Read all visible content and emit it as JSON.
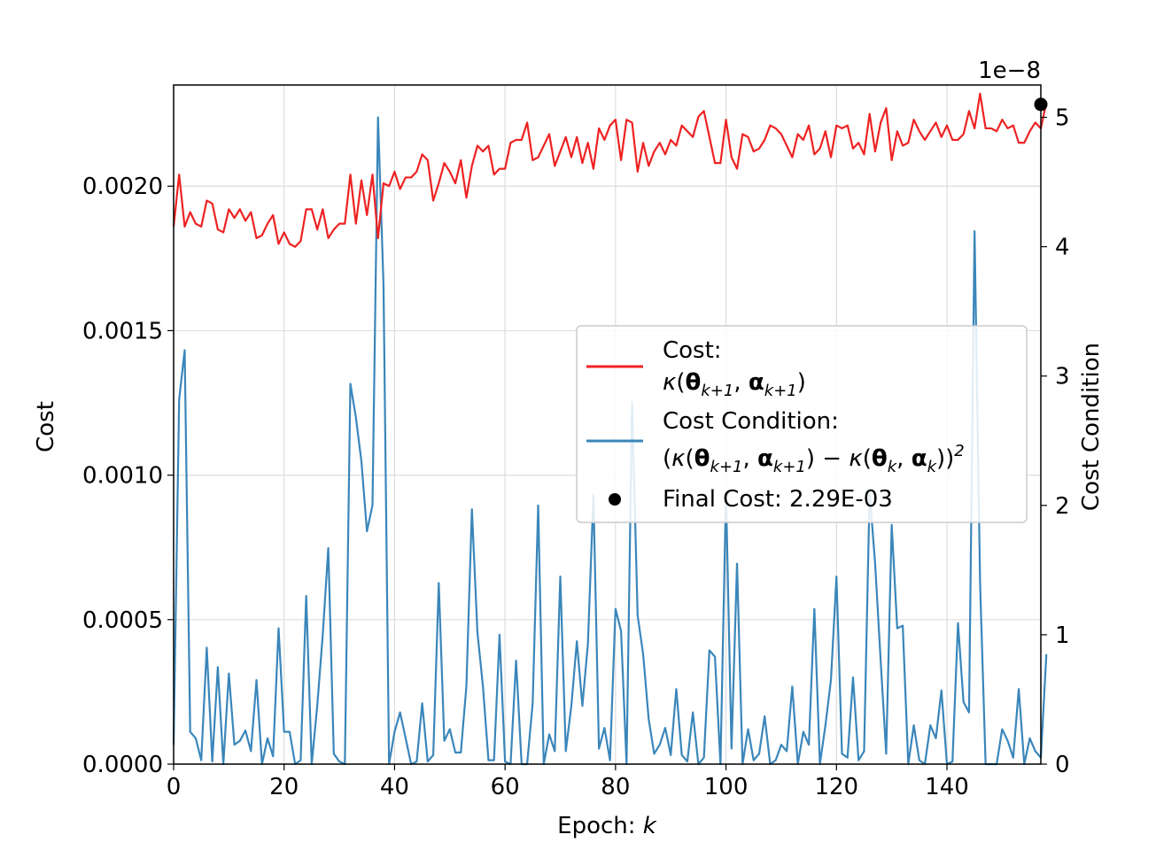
{
  "chart_data": {
    "type": "line",
    "xlabel": "Epoch: k",
    "ylabel_left": "Cost",
    "ylabel_right": "Cost Condition",
    "right_axis_offset_text": "1e−8",
    "x_ticks": [
      "0",
      "20",
      "40",
      "60",
      "80",
      "100",
      "120",
      "140"
    ],
    "y_left_ticks": [
      "0.0000",
      "0.0005",
      "0.0010",
      "0.0015",
      "0.0020"
    ],
    "y_right_ticks": [
      "0",
      "1",
      "2",
      "3",
      "4",
      "5"
    ],
    "xlim": [
      0,
      157
    ],
    "ylim_left": [
      0,
      0.00235
    ],
    "ylim_right": [
      0,
      5.25
    ],
    "grid": true,
    "legend_position": "center-right",
    "colors": {
      "cost": "#ee2222",
      "condition": "#3a86ba",
      "final": "#000000"
    },
    "legend": {
      "cost_title": "Cost:",
      "cost_formula": "κ(θk+1, αk+1)",
      "condition_title": "Cost Condition:",
      "condition_formula": "(κ(θk+1, αk+1) − κ(θk, αk))²",
      "final_label": "Final Cost: 2.29E-03"
    },
    "series": [
      {
        "name": "Cost",
        "axis": "left",
        "x_start": 0,
        "values": [
          0.00186,
          0.00204,
          0.00186,
          0.00191,
          0.00187,
          0.00186,
          0.00195,
          0.00194,
          0.00185,
          0.00184,
          0.00192,
          0.00189,
          0.00192,
          0.00188,
          0.00191,
          0.00182,
          0.00183,
          0.00187,
          0.0019,
          0.0018,
          0.00184,
          0.0018,
          0.00179,
          0.00181,
          0.00192,
          0.00192,
          0.00185,
          0.00192,
          0.00182,
          0.00185,
          0.00187,
          0.00187,
          0.00204,
          0.00187,
          0.00202,
          0.0019,
          0.00204,
          0.00182,
          0.00201,
          0.002,
          0.00205,
          0.00199,
          0.00203,
          0.00203,
          0.00205,
          0.00211,
          0.00209,
          0.00195,
          0.00201,
          0.00208,
          0.00205,
          0.00201,
          0.00209,
          0.00196,
          0.00207,
          0.00214,
          0.00212,
          0.00214,
          0.00204,
          0.00206,
          0.00206,
          0.00215,
          0.00216,
          0.00216,
          0.00222,
          0.00209,
          0.0021,
          0.00214,
          0.00218,
          0.00207,
          0.00212,
          0.00217,
          0.0021,
          0.00217,
          0.00208,
          0.00215,
          0.00206,
          0.0022,
          0.00216,
          0.00221,
          0.00223,
          0.00209,
          0.00223,
          0.00222,
          0.00205,
          0.00215,
          0.00207,
          0.00212,
          0.00215,
          0.00211,
          0.00216,
          0.00214,
          0.00221,
          0.00219,
          0.00217,
          0.00224,
          0.00226,
          0.00217,
          0.00208,
          0.00208,
          0.00223,
          0.0021,
          0.00206,
          0.00218,
          0.00217,
          0.00212,
          0.00213,
          0.00216,
          0.00221,
          0.0022,
          0.00218,
          0.00214,
          0.0021,
          0.00218,
          0.00216,
          0.00221,
          0.00211,
          0.00213,
          0.00219,
          0.0021,
          0.00221,
          0.0022,
          0.00221,
          0.00213,
          0.00215,
          0.00211,
          0.00225,
          0.00212,
          0.00222,
          0.00227,
          0.00209,
          0.00219,
          0.00214,
          0.00215,
          0.00223,
          0.00219,
          0.00216,
          0.00219,
          0.00222,
          0.00217,
          0.00221,
          0.00216,
          0.00216,
          0.00218,
          0.00226,
          0.0022,
          0.00232,
          0.0022,
          0.0022,
          0.00219,
          0.00223,
          0.0022,
          0.00221,
          0.00215,
          0.00215,
          0.00219,
          0.00222,
          0.0022,
          0.00229
        ]
      },
      {
        "name": "Cost Condition",
        "axis": "right",
        "x_start": 0,
        "values": [
          0.15,
          2.82,
          3.2,
          0.25,
          0.2,
          0.03,
          0.9,
          0.02,
          0.75,
          0.0,
          0.7,
          0.15,
          0.18,
          0.26,
          0.1,
          0.65,
          0.0,
          0.2,
          0.06,
          1.05,
          0.25,
          0.25,
          0.0,
          0.03,
          1.3,
          0.0,
          0.45,
          1.0,
          1.67,
          0.08,
          0.02,
          0.0,
          2.94,
          2.68,
          2.34,
          1.8,
          2.0,
          5.0,
          3.7,
          0.0,
          0.25,
          0.4,
          0.2,
          0.0,
          0.02,
          0.47,
          0.02,
          0.07,
          1.4,
          0.18,
          0.27,
          0.09,
          0.09,
          0.6,
          1.97,
          1.02,
          0.6,
          0.03,
          0.03,
          1.0,
          0.02,
          0.0,
          0.8,
          0.0,
          0.0,
          0.47,
          2.0,
          0.0,
          0.23,
          0.1,
          1.45,
          0.1,
          0.45,
          0.95,
          0.45,
          0.93,
          2.08,
          0.12,
          0.28,
          0.03,
          1.2,
          1.03,
          0.0,
          2.8,
          1.15,
          0.85,
          0.35,
          0.08,
          0.15,
          0.28,
          0.07,
          0.58,
          0.07,
          0.02,
          0.4,
          0.0,
          0.05,
          0.88,
          0.83,
          0.0,
          2.1,
          0.12,
          1.55,
          0.0,
          0.27,
          0.03,
          0.08,
          0.37,
          0.0,
          0.03,
          0.15,
          0.1,
          0.6,
          0.0,
          0.25,
          0.15,
          1.2,
          0.0,
          0.3,
          0.65,
          1.45,
          0.08,
          0.05,
          0.67,
          0.03,
          0.1,
          2.1,
          1.55,
          0.8,
          0.08,
          1.85,
          1.05,
          1.07,
          0.0,
          0.3,
          0.03,
          0.0,
          0.3,
          0.2,
          0.57,
          0.0,
          0.02,
          1.09,
          0.48,
          0.4,
          4.12,
          1.4,
          0.0,
          0.0,
          0.0,
          0.27,
          0.18,
          0.05,
          0.58,
          0.0,
          0.2,
          0.1,
          0.05,
          0.85
        ]
      }
    ],
    "final_point": {
      "x": 157,
      "cost": 0.00229
    }
  }
}
